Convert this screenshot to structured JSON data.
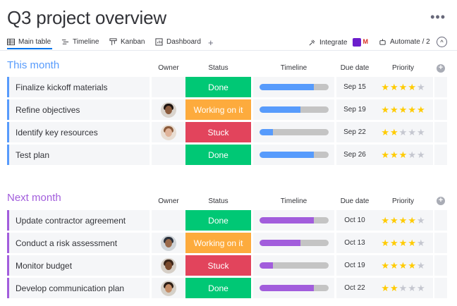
{
  "page": {
    "title": "Q3 project overview",
    "more": "•••"
  },
  "tabs": [
    {
      "label": "Main table",
      "icon": "table-icon",
      "active": true
    },
    {
      "label": "Timeline",
      "icon": "timeline-icon"
    },
    {
      "label": "Kanban",
      "icon": "kanban-icon"
    },
    {
      "label": "Dashboard",
      "icon": "dashboard-icon"
    }
  ],
  "toolbar": {
    "add": "+",
    "integrate": "Integrate",
    "automate": "Automate / 2",
    "collapse": "^"
  },
  "columns": {
    "owner": "Owner",
    "status": "Status",
    "timeline": "Timeline",
    "due": "Due date",
    "priority": "Priority",
    "add": "+"
  },
  "colors": {
    "done": "#00c875",
    "working": "#fdab3d",
    "stuck": "#e2445c",
    "star_on": "#ffcb00",
    "star_off": "#c5c7d0"
  },
  "groups": [
    {
      "title": "This month",
      "color": "#579bfc",
      "rows": [
        {
          "name": "Finalize kickoff materials",
          "owner": "",
          "status": "Done",
          "status_color": "#00c875",
          "timeline": 0.79,
          "due": "Sep 15",
          "priority": 4
        },
        {
          "name": "Refine objectives",
          "owner": "woman-avatar-dark",
          "status": "Working on it",
          "status_color": "#fdab3d",
          "timeline": 0.6,
          "due": "Sep 19",
          "priority": 5
        },
        {
          "name": "Identify key resources",
          "owner": "woman-avatar-light",
          "status": "Stuck",
          "status_color": "#e2445c",
          "timeline": 0.2,
          "due": "Sep 22",
          "priority": 2
        },
        {
          "name": "Test plan",
          "owner": "",
          "status": "Done",
          "status_color": "#00c875",
          "timeline": 0.79,
          "due": "Sep 26",
          "priority": 3
        }
      ]
    },
    {
      "title": "Next month",
      "color": "#a25ddc",
      "rows": [
        {
          "name": "Update contractor agreement",
          "owner": "",
          "status": "Done",
          "status_color": "#00c875",
          "timeline": 0.79,
          "due": "Oct 10",
          "priority": 4
        },
        {
          "name": "Conduct a risk assessment",
          "owner": "man-avatar-turban",
          "status": "Working on it",
          "status_color": "#fdab3d",
          "timeline": 0.6,
          "due": "Oct 13",
          "priority": 4
        },
        {
          "name": "Monitor budget",
          "owner": "woman-avatar-curly",
          "status": "Stuck",
          "status_color": "#e2445c",
          "timeline": 0.2,
          "due": "Oct 19",
          "priority": 4
        },
        {
          "name": "Develop communication plan",
          "owner": "man-avatar-beard",
          "status": "Done",
          "status_color": "#00c875",
          "timeline": 0.79,
          "due": "Oct 22",
          "priority": 2
        }
      ]
    }
  ]
}
